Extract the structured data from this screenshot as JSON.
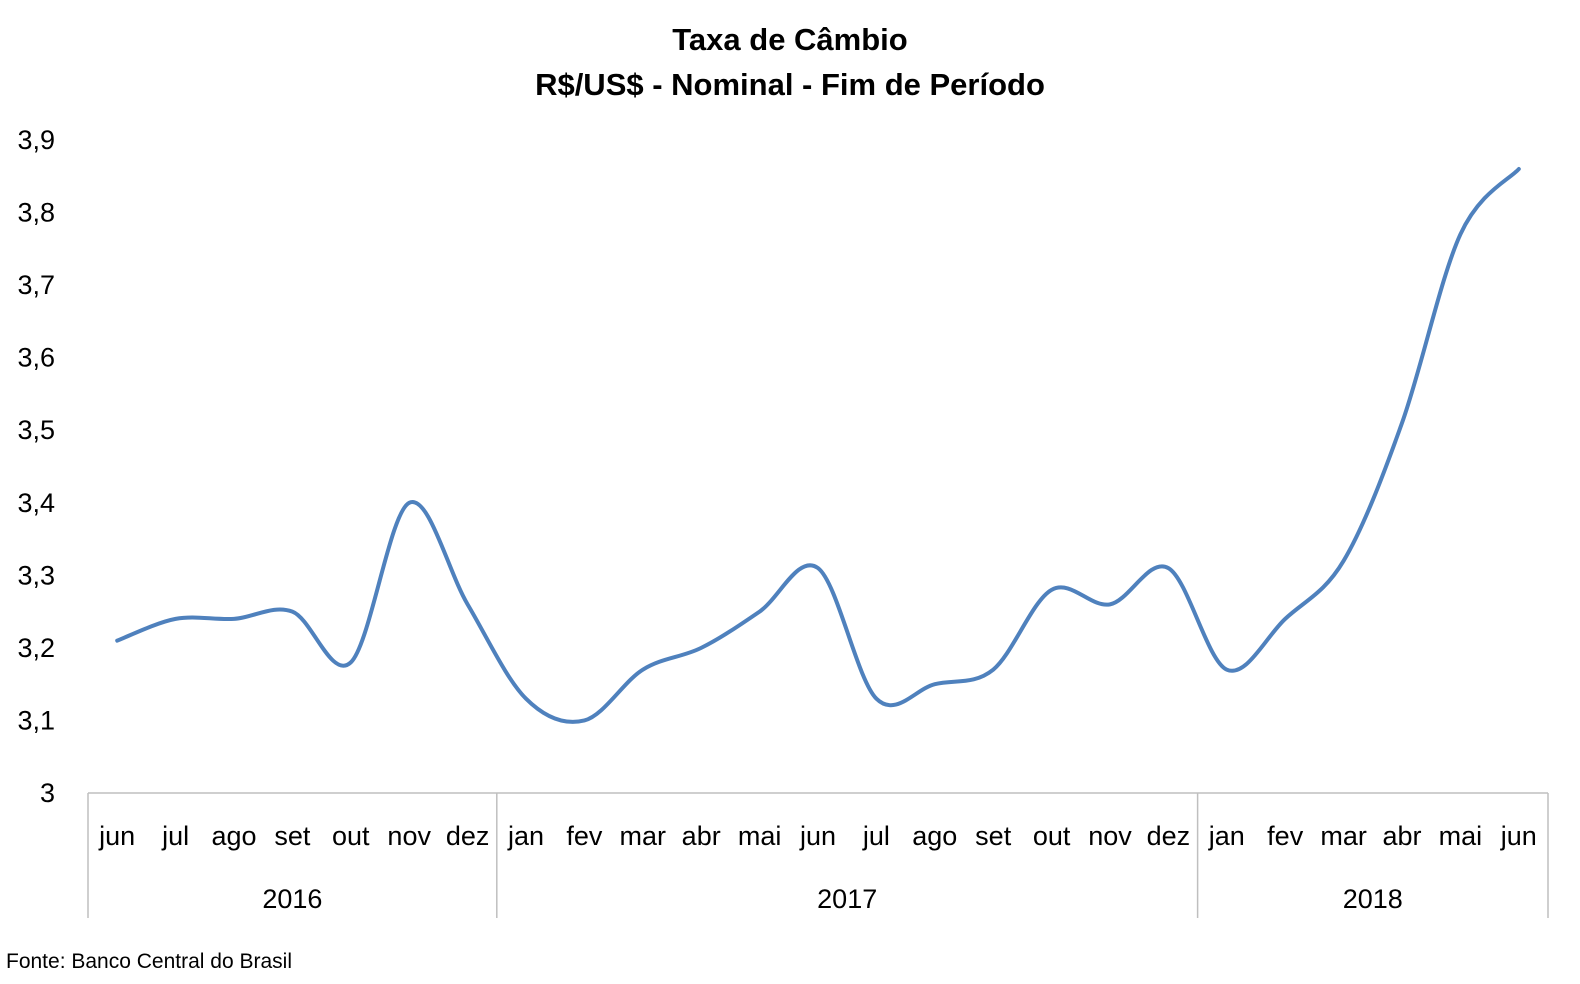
{
  "chart_data": {
    "type": "line",
    "title": "Taxa de Câmbio",
    "subtitle": "R$/US$ - Nominal - Fim de Período",
    "source": "Fonte: Banco Central do Brasil",
    "ylim": [
      3.0,
      3.9
    ],
    "yticks": [
      "3",
      "3,1",
      "3,2",
      "3,3",
      "3,4",
      "3,5",
      "3,6",
      "3,7",
      "3,8",
      "3,9"
    ],
    "ytick_values": [
      3.0,
      3.1,
      3.2,
      3.3,
      3.4,
      3.5,
      3.6,
      3.7,
      3.8,
      3.9
    ],
    "categories": [
      "jun",
      "jul",
      "ago",
      "set",
      "out",
      "nov",
      "dez",
      "jan",
      "fev",
      "mar",
      "abr",
      "mai",
      "jun",
      "jul",
      "ago",
      "set",
      "out",
      "nov",
      "dez",
      "jan",
      "fev",
      "mar",
      "abr",
      "mai",
      "jun"
    ],
    "years": [
      {
        "label": "2016",
        "count": 7
      },
      {
        "label": "2017",
        "count": 12
      },
      {
        "label": "2018",
        "count": 6
      }
    ],
    "series": [
      {
        "color": "#4F81BD",
        "values": [
          3.21,
          3.24,
          3.24,
          3.25,
          3.18,
          3.4,
          3.26,
          3.13,
          3.1,
          3.17,
          3.2,
          3.25,
          3.31,
          3.13,
          3.15,
          3.17,
          3.28,
          3.26,
          3.31,
          3.17,
          3.24,
          3.32,
          3.51,
          3.77,
          3.86
        ]
      }
    ],
    "grid": false,
    "legend": "none"
  }
}
